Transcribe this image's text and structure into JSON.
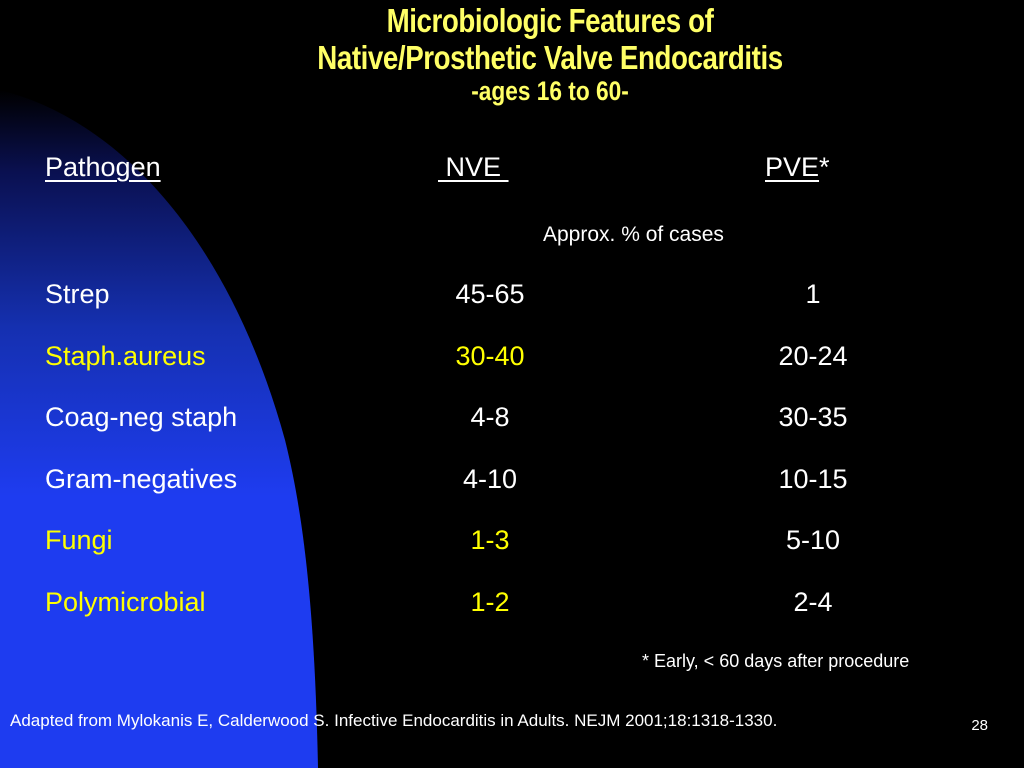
{
  "title": {
    "line1": "Microbiologic Features of",
    "line2": "Native/Prosthetic Valve Endocarditis",
    "subtitle": "-ages 16 to 60-"
  },
  "table": {
    "headers": {
      "pathogen": "Pathogen",
      "nve": " NVE ",
      "pve": "PVE",
      "pve_mark": "*"
    },
    "unit_note": "Approx. % of cases",
    "rows": [
      {
        "pathogen": "Strep",
        "nve": "45-65",
        "pve": "1",
        "highlight": false
      },
      {
        "pathogen": "Staph.aureus",
        "nve": "30-40",
        "pve": "20-24",
        "highlight": true
      },
      {
        "pathogen": "Coag-neg staph",
        "nve": "4-8",
        "pve": "30-35",
        "highlight": false
      },
      {
        "pathogen": "Gram-negatives",
        "nve": "4-10",
        "pve": "10-15",
        "highlight": false
      },
      {
        "pathogen": "Fungi",
        "nve": "1-3",
        "pve": "5-10",
        "highlight": true
      },
      {
        "pathogen": "Polymicrobial",
        "nve": "1-2",
        "pve": "2-4",
        "highlight": true
      }
    ]
  },
  "footnote": "* Early, < 60 days after procedure",
  "source": "Adapted from Mylokanis E, Calderwood S.  Infective Endocarditis in Adults.  NEJM 2001;18:1318-1330.",
  "page_number": "28",
  "colors": {
    "background": "#000000",
    "swoosh": "#1E3CF0",
    "title": "#FFFF66",
    "highlight": "#FFFF00",
    "text": "#FFFFFF"
  }
}
